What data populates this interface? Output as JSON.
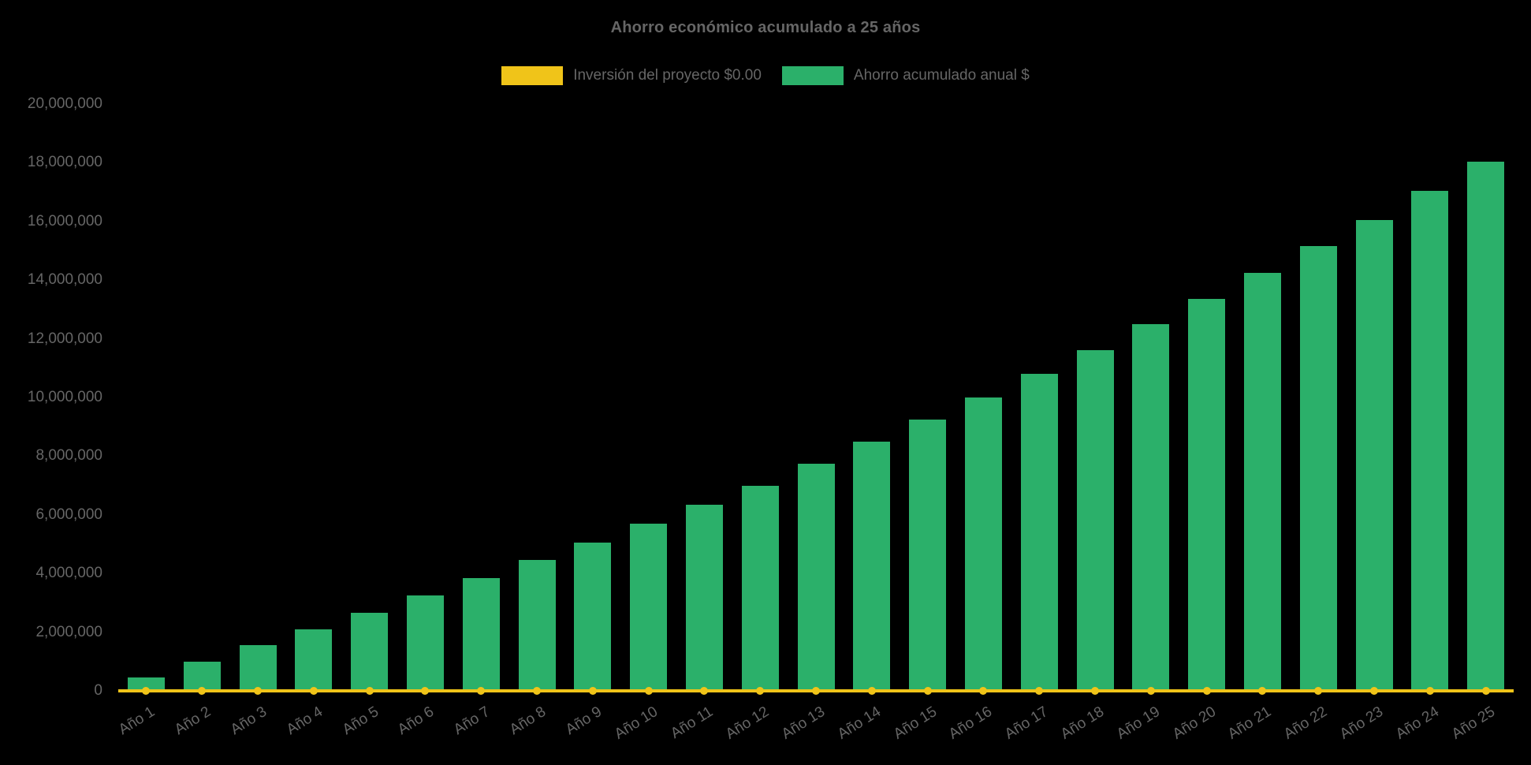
{
  "title": "Ahorro económico acumulado a 25 años",
  "legend": {
    "items": [
      {
        "label": "Inversión del proyecto $0.00",
        "color": "#f0c419"
      },
      {
        "label": "Ahorro acumulado anual $",
        "color": "#2bb06a"
      }
    ]
  },
  "chart_data": {
    "type": "bar",
    "title": "Ahorro económico acumulado a 25 años",
    "categories": [
      "Año 1",
      "Año 2",
      "Año 3",
      "Año 4",
      "Año 5",
      "Año 6",
      "Año 7",
      "Año 8",
      "Año 9",
      "Año 10",
      "Año 11",
      "Año 12",
      "Año 13",
      "Año 14",
      "Año 15",
      "Año 16",
      "Año 17",
      "Año 18",
      "Año 19",
      "Año 20",
      "Año 21",
      "Año 22",
      "Año 23",
      "Año 24",
      "Año 25"
    ],
    "series": [
      {
        "name": "Inversión del proyecto $0.00",
        "type": "line",
        "color": "#f0c419",
        "point_style": "circle",
        "values": [
          0,
          0,
          0,
          0,
          0,
          0,
          0,
          0,
          0,
          0,
          0,
          0,
          0,
          0,
          0,
          0,
          0,
          0,
          0,
          0,
          0,
          0,
          0,
          0,
          0
        ]
      },
      {
        "name": "Ahorro acumulado anual $",
        "type": "bar",
        "color": "#2bb06a",
        "values": [
          450000,
          1000000,
          1550000,
          2100000,
          2650000,
          3250000,
          3850000,
          4450000,
          5050000,
          5700000,
          6350000,
          7000000,
          7750000,
          8500000,
          9250000,
          10000000,
          10800000,
          11600000,
          12500000,
          13350000,
          14250000,
          15150000,
          16050000,
          17050000,
          18050000
        ]
      }
    ],
    "xlabel": "",
    "ylabel": "",
    "ylim": [
      0,
      20000000
    ],
    "ytick_step": 2000000,
    "grid": false,
    "legend_position": "top",
    "background": "#000000",
    "text_color": "#666666"
  }
}
